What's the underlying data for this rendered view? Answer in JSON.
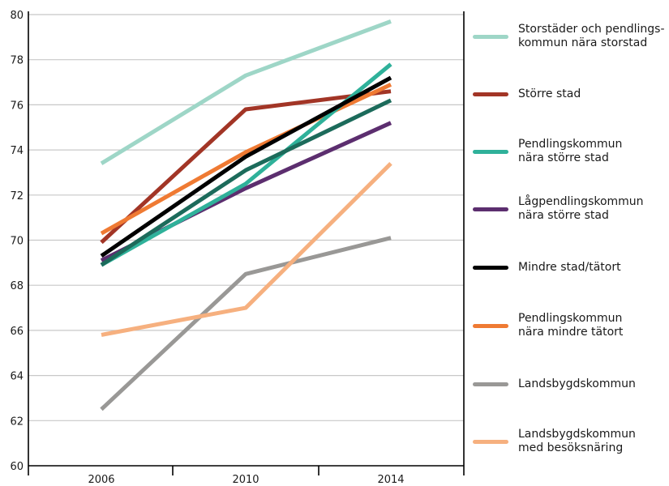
{
  "chart_data": {
    "type": "line",
    "title": "",
    "xlabel": "",
    "ylabel": "",
    "x": [
      "2006",
      "2010",
      "2014"
    ],
    "ylim": [
      60,
      80
    ],
    "yticks": [
      "60",
      "62",
      "64",
      "66",
      "68",
      "70",
      "72",
      "74",
      "76",
      "78",
      "80"
    ],
    "grid": "horizontal",
    "legend_position": "right",
    "series": [
      {
        "name": "Storstäder och pendlings-\nkommun nära storstad",
        "color": "#9ed6c7",
        "values": [
          73.4,
          77.3,
          79.7
        ]
      },
      {
        "name": "Större stad",
        "color": "#a23526",
        "values": [
          69.9,
          75.8,
          76.6
        ]
      },
      {
        "name": "Pendlingskommun\nnära större stad",
        "color": "#2fb19a",
        "values": [
          68.9,
          72.5,
          77.8
        ]
      },
      {
        "name": "Lågpendlingskommun\nnära större stad",
        "color": "#5c2e6f",
        "values": [
          69.1,
          72.3,
          75.2
        ]
      },
      {
        "name": "Mindre stad/tätort",
        "color": "#000000",
        "values": [
          69.3,
          73.7,
          77.2
        ]
      },
      {
        "name": "Pendlingskommun\nnära mindre tätort",
        "color": "#ef7a33",
        "values": [
          70.3,
          73.9,
          76.9
        ]
      },
      {
        "name": "Landsbygdskommun",
        "color": "#999896",
        "values": [
          62.5,
          68.5,
          70.1
        ]
      },
      {
        "name": "Landsbygdskommun\nmed besöksnäring",
        "color": "#f6b07f",
        "values": [
          65.8,
          67.0,
          73.4
        ]
      }
    ],
    "extra_lines": [
      {
        "color": "#1c6b5b",
        "values": [
          68.9,
          73.1,
          76.2
        ]
      }
    ]
  }
}
